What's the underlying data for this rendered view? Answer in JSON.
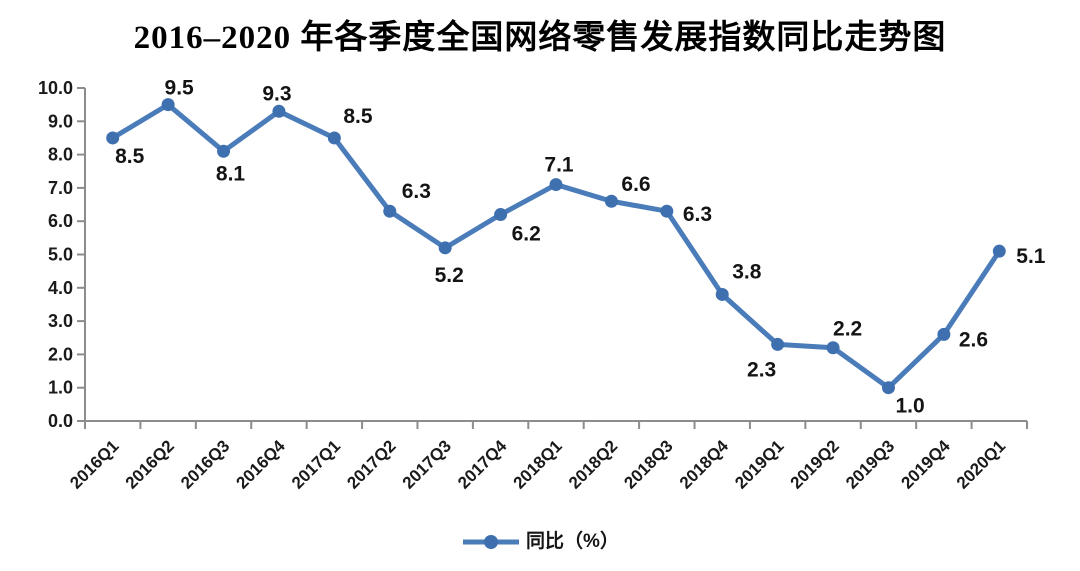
{
  "chart_data": {
    "type": "line",
    "title": "2016–2020 年各季度全国网络零售发展指数同比走势图",
    "categories": [
      "2016Q1",
      "2016Q2",
      "2016Q3",
      "2016Q4",
      "2017Q1",
      "2017Q2",
      "2017Q3",
      "2017Q4",
      "2018Q1",
      "2018Q2",
      "2018Q3",
      "2018Q4",
      "2019Q1",
      "2019Q2",
      "2019Q3",
      "2019Q4",
      "2020Q1"
    ],
    "series": [
      {
        "name": "同比（%）",
        "values": [
          8.5,
          9.5,
          8.1,
          9.3,
          8.5,
          6.3,
          5.2,
          6.2,
          7.1,
          6.6,
          6.3,
          3.8,
          2.3,
          2.2,
          1.0,
          2.6,
          5.1
        ]
      }
    ],
    "ylim": [
      0.0,
      10.0
    ],
    "ytick_step": 1.0,
    "ytick_decimals": 1,
    "grid": "off",
    "data_labels_shown": true,
    "legend_position": "bottom-center",
    "x_label_rotation_deg": -45,
    "label_offsets": [
      [
        17,
        25,
        "m"
      ],
      [
        11,
        -10,
        "m"
      ],
      [
        7,
        29,
        "m"
      ],
      [
        -2,
        -11,
        "m"
      ],
      [
        9,
        -15,
        "s"
      ],
      [
        12,
        -13,
        "s"
      ],
      [
        4,
        34,
        "m"
      ],
      [
        11,
        26,
        "s"
      ],
      [
        3,
        -13,
        "m"
      ],
      [
        10,
        -10,
        "s"
      ],
      [
        16,
        10,
        "s"
      ],
      [
        10,
        -16,
        "s"
      ],
      [
        -16,
        32,
        "m"
      ],
      [
        0,
        -12,
        "s"
      ],
      [
        7,
        25,
        "s"
      ],
      [
        15,
        12,
        "s"
      ],
      [
        17,
        12,
        "s"
      ]
    ],
    "colors": {
      "line": "#4A7CBA",
      "marker": "#3E6FAE",
      "axis": "#8C8C8C",
      "tick_label": "#1A1A1A",
      "data_label": "#141414",
      "title": "#000000"
    }
  }
}
